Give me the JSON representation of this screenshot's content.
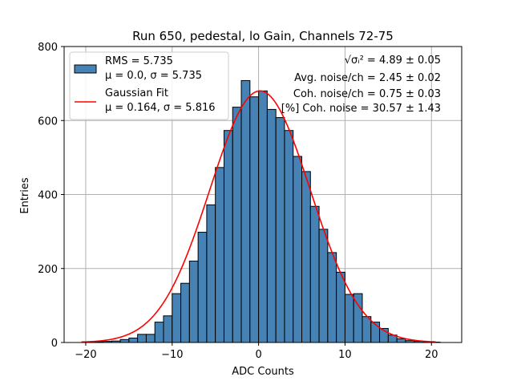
{
  "chart_data": {
    "type": "bar",
    "title": "Run 650, pedestal, lo Gain, Channels 72-75",
    "xlabel": "ADC Counts",
    "ylabel": "Entries",
    "xlim": [
      -22.5,
      23.5
    ],
    "ylim": [
      0,
      800
    ],
    "xticks": [
      -20,
      -10,
      0,
      10,
      20
    ],
    "xtick_labels": [
      "−20",
      "−10",
      "0",
      "10",
      "20"
    ],
    "yticks": [
      0,
      200,
      400,
      600,
      800
    ],
    "ytick_labels": [
      "0",
      "200",
      "400",
      "600",
      "800"
    ],
    "grid": true,
    "legend_position": "top-left",
    "bin_width": 1,
    "bins": [
      {
        "x0": -19,
        "v": 2
      },
      {
        "x0": -18,
        "v": 3
      },
      {
        "x0": -17,
        "v": 4
      },
      {
        "x0": -16,
        "v": 8
      },
      {
        "x0": -15,
        "v": 12
      },
      {
        "x0": -14,
        "v": 22
      },
      {
        "x0": -13,
        "v": 22
      },
      {
        "x0": -12,
        "v": 55
      },
      {
        "x0": -11,
        "v": 72
      },
      {
        "x0": -10,
        "v": 132
      },
      {
        "x0": -9,
        "v": 160
      },
      {
        "x0": -8,
        "v": 220
      },
      {
        "x0": -7,
        "v": 298
      },
      {
        "x0": -6,
        "v": 372
      },
      {
        "x0": -5,
        "v": 473
      },
      {
        "x0": -4,
        "v": 573
      },
      {
        "x0": -3,
        "v": 636
      },
      {
        "x0": -2,
        "v": 708
      },
      {
        "x0": -1,
        "v": 664
      },
      {
        "x0": 0,
        "v": 680
      },
      {
        "x0": 1,
        "v": 630
      },
      {
        "x0": 2,
        "v": 608
      },
      {
        "x0": 3,
        "v": 573
      },
      {
        "x0": 4,
        "v": 503
      },
      {
        "x0": 5,
        "v": 462
      },
      {
        "x0": 6,
        "v": 368
      },
      {
        "x0": 7,
        "v": 306
      },
      {
        "x0": 8,
        "v": 243
      },
      {
        "x0": 9,
        "v": 190
      },
      {
        "x0": 10,
        "v": 130
      },
      {
        "x0": 11,
        "v": 132
      },
      {
        "x0": 12,
        "v": 70
      },
      {
        "x0": 13,
        "v": 55
      },
      {
        "x0": 14,
        "v": 38
      },
      {
        "x0": 15,
        "v": 20
      },
      {
        "x0": 16,
        "v": 10
      },
      {
        "x0": 17,
        "v": 5
      },
      {
        "x0": 18,
        "v": 3
      },
      {
        "x0": 19,
        "v": 2
      },
      {
        "x0": 20,
        "v": 1
      }
    ],
    "gaussian_fit": {
      "mu": 0.164,
      "sigma": 5.816,
      "amplitude": 680,
      "x_range": [
        -20.5,
        20.5
      ]
    },
    "legend": [
      {
        "label": "RMS = 5.735",
        "sublabel": "μ = 0.0, σ = 5.735",
        "kind": "patch"
      },
      {
        "label": "Gaussian Fit",
        "sublabel": "μ = 0.164, σ = 5.816",
        "kind": "line"
      }
    ],
    "annotations": [
      "√σᵢ² = 4.89 ± 0.05",
      "Avg. noise/ch = 2.45 ± 0.02",
      "Coh. noise/ch = 0.75 ± 0.03",
      "[%] Coh. noise = 30.57 ± 1.43"
    ],
    "colors": {
      "bar_fill": "#4682b4",
      "bar_edge": "#000000",
      "fit_line": "#ff0000",
      "grid": "#b0b0b0"
    }
  }
}
